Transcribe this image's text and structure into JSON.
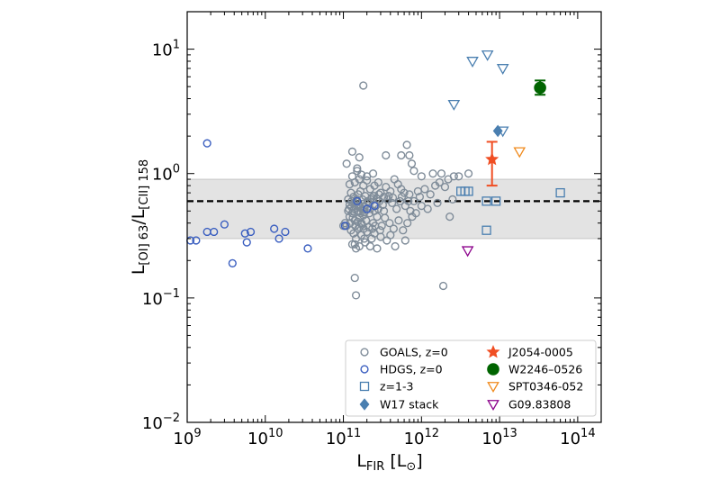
{
  "chart_data": {
    "type": "scatter",
    "x_scale": "log",
    "y_scale": "log",
    "xlim": [
      1000000000.0,
      200000000000000.0
    ],
    "ylim": [
      0.01,
      20
    ],
    "x_ticks": [
      {
        "value": 1000000000.0,
        "base": "10",
        "exp": "9"
      },
      {
        "value": 10000000000.0,
        "base": "10",
        "exp": "10"
      },
      {
        "value": 100000000000.0,
        "base": "10",
        "exp": "11"
      },
      {
        "value": 1000000000000.0,
        "base": "10",
        "exp": "12"
      },
      {
        "value": 10000000000000.0,
        "base": "10",
        "exp": "13"
      },
      {
        "value": 100000000000000.0,
        "base": "10",
        "exp": "14"
      }
    ],
    "y_ticks": [
      {
        "value": 0.01,
        "base": "10",
        "exp": "−2"
      },
      {
        "value": 0.1,
        "base": "10",
        "exp": "−1"
      },
      {
        "value": 1,
        "base": "10",
        "exp": "0"
      },
      {
        "value": 10,
        "base": "10",
        "exp": "1"
      }
    ],
    "xlabel": {
      "main": "L",
      "sub": "FIR",
      "unit": " [L",
      "unit_sub": "⊙",
      "close": "]"
    },
    "ylabel": {
      "main1": "L",
      "sub1": "[OI] 63",
      "slash": "/L",
      "sub2": "[CII] 158"
    },
    "reference_line": {
      "y": 0.6,
      "style": "dashed"
    },
    "reference_band": {
      "y0": 0.3,
      "y1": 0.9
    },
    "grid": false,
    "legend_position": "lower right",
    "series": [
      {
        "name": "GOALS, z=0",
        "marker": "circle-open",
        "color": "#7f8c99",
        "points": [
          [
            110000000000.0,
            1.2
          ],
          [
            130000000000.0,
            0.95
          ],
          [
            150000000000.0,
            1.05
          ],
          [
            170000000000.0,
            0.98
          ],
          [
            120000000000.0,
            0.82
          ],
          [
            140000000000.0,
            0.85
          ],
          [
            160000000000.0,
            0.9
          ],
          [
            180000000000.0,
            0.8
          ],
          [
            200000000000.0,
            0.88
          ],
          [
            220000000000.0,
            0.75
          ],
          [
            250000000000.0,
            0.8
          ],
          [
            280000000000.0,
            0.85
          ],
          [
            300000000000.0,
            0.7
          ],
          [
            350000000000.0,
            0.78
          ],
          [
            400000000000.0,
            0.72
          ],
          [
            450000000000.0,
            0.9
          ],
          [
            500000000000.0,
            0.82
          ],
          [
            550000000000.0,
            0.75
          ],
          [
            600000000000.0,
            0.7
          ],
          [
            700000000000.0,
            0.68
          ],
          [
            800000000000.0,
            1.05
          ],
          [
            900000000000.0,
            0.72
          ],
          [
            1100000000000.0,
            0.75
          ],
          [
            1300000000000.0,
            0.68
          ],
          [
            1500000000000.0,
            0.8
          ],
          [
            1700000000000.0,
            0.85
          ],
          [
            2000000000000.0,
            0.78
          ],
          [
            2200000000000.0,
            0.9
          ],
          [
            2600000000000.0,
            0.95
          ],
          [
            3000000000000.0,
            0.95
          ],
          [
            1800000000000.0,
            1.0
          ],
          [
            4000000000000.0,
            1.0
          ],
          [
            125000000000.0,
            0.7
          ],
          [
            135000000000.0,
            0.65
          ],
          [
            145000000000.0,
            0.6
          ],
          [
            155000000000.0,
            0.68
          ],
          [
            165000000000.0,
            0.72
          ],
          [
            175000000000.0,
            0.62
          ],
          [
            190000000000.0,
            0.66
          ],
          [
            210000000000.0,
            0.58
          ],
          [
            230000000000.0,
            0.64
          ],
          [
            260000000000.0,
            0.55
          ],
          [
            290000000000.0,
            0.6
          ],
          [
            320000000000.0,
            0.56
          ],
          [
            370000000000.0,
            0.62
          ],
          [
            420000000000.0,
            0.58
          ],
          [
            480000000000.0,
            0.52
          ],
          [
            530000000000.0,
            0.6
          ],
          [
            620000000000.0,
            0.55
          ],
          [
            720000000000.0,
            0.5
          ],
          [
            850000000000.0,
            0.48
          ],
          [
            1000000000000.0,
            0.55
          ],
          [
            1200000000000.0,
            0.52
          ],
          [
            1600000000000.0,
            0.58
          ],
          [
            115000000000.0,
            0.5
          ],
          [
            120000000000.0,
            0.45
          ],
          [
            130000000000.0,
            0.48
          ],
          [
            140000000000.0,
            0.42
          ],
          [
            150000000000.0,
            0.5
          ],
          [
            160000000000.0,
            0.44
          ],
          [
            170000000000.0,
            0.4
          ],
          [
            180000000000.0,
            0.46
          ],
          [
            195000000000.0,
            0.42
          ],
          [
            215000000000.0,
            0.48
          ],
          [
            240000000000.0,
            0.4
          ],
          [
            270000000000.0,
            0.45
          ],
          [
            310000000000.0,
            0.38
          ],
          [
            340000000000.0,
            0.44
          ],
          [
            390000000000.0,
            0.4
          ],
          [
            440000000000.0,
            0.36
          ],
          [
            510000000000.0,
            0.42
          ],
          [
            580000000000.0,
            0.35
          ],
          [
            660000000000.0,
            0.4
          ],
          [
            760000000000.0,
            0.45
          ],
          [
            110000000000.0,
            0.38
          ],
          [
            125000000000.0,
            0.35
          ],
          [
            135000000000.0,
            0.33
          ],
          [
            145000000000.0,
            0.3
          ],
          [
            155000000000.0,
            0.36
          ],
          [
            170000000000.0,
            0.32
          ],
          [
            185000000000.0,
            0.3
          ],
          [
            200000000000.0,
            0.34
          ],
          [
            230000000000.0,
            0.3
          ],
          [
            250000000000.0,
            0.33
          ],
          [
            300000000000.0,
            0.31
          ],
          [
            360000000000.0,
            0.29
          ],
          [
            400000000000.0,
            0.32
          ],
          [
            130000000000.0,
            0.27
          ],
          [
            145000000000.0,
            0.25
          ],
          [
            160000000000.0,
            0.26
          ],
          [
            190000000000.0,
            0.28
          ],
          [
            220000000000.0,
            0.26
          ],
          [
            270000000000.0,
            0.25
          ],
          [
            460000000000.0,
            0.26
          ],
          [
            620000000000.0,
            0.29
          ],
          [
            140000000000.0,
            0.27
          ],
          [
            120000000000.0,
            0.56
          ],
          [
            128000000000.0,
            0.6
          ],
          [
            138000000000.0,
            0.58
          ],
          [
            148000000000.0,
            0.62
          ],
          [
            158000000000.0,
            0.55
          ],
          [
            168000000000.0,
            0.53
          ],
          [
            178000000000.0,
            0.57
          ],
          [
            188000000000.0,
            0.54
          ],
          [
            205000000000.0,
            0.6
          ],
          [
            225000000000.0,
            0.62
          ],
          [
            245000000000.0,
            0.66
          ],
          [
            265000000000.0,
            0.63
          ],
          [
            285000000000.0,
            0.68
          ],
          [
            330000000000.0,
            0.65
          ],
          [
            380000000000.0,
            0.66
          ],
          [
            430000000000.0,
            0.64
          ],
          [
            560000000000.0,
            0.65
          ],
          [
            680000000000.0,
            0.6
          ],
          [
            115000000000.0,
            0.62
          ],
          [
            122000000000.0,
            0.4
          ],
          [
            132000000000.0,
            0.44
          ],
          [
            142000000000.0,
            0.38
          ],
          [
            152000000000.0,
            0.41
          ],
          [
            162000000000.0,
            0.37
          ],
          [
            172000000000.0,
            0.39
          ],
          [
            182000000000.0,
            0.36
          ],
          [
            212000000000.0,
            0.37
          ],
          [
            235000000000.0,
            0.36
          ],
          [
            255000000000.0,
            0.38
          ],
          [
            295000000000.0,
            0.35
          ],
          [
            118000000000.0,
            0.52
          ],
          [
            127000000000.0,
            0.54
          ],
          [
            137000000000.0,
            0.52
          ],
          [
            147000000000.0,
            0.55
          ],
          [
            157000000000.0,
            0.5
          ],
          [
            167000000000.0,
            0.48
          ],
          [
            177000000000.0,
            0.51
          ],
          [
            187000000000.0,
            0.49
          ],
          [
            220000000000.0,
            0.52
          ],
          [
            250000000000.0,
            0.5
          ],
          [
            280000000000.0,
            0.52
          ],
          [
            330000000000.0,
            0.5
          ],
          [
            180000000000.0,
            5.1
          ],
          [
            160000000000.0,
            1.35
          ],
          [
            650000000000.0,
            1.7
          ],
          [
            700000000000.0,
            1.4
          ],
          [
            550000000000.0,
            1.4
          ],
          [
            750000000000.0,
            1.2
          ],
          [
            350000000000.0,
            1.4
          ],
          [
            1400000000000.0,
            1.0
          ],
          [
            1000000000000.0,
            0.95
          ],
          [
            140000000000.0,
            0.145
          ],
          [
            145000000000.0,
            0.105
          ],
          [
            1900000000000.0,
            0.125
          ],
          [
            2500000000000.0,
            0.62
          ],
          [
            2300000000000.0,
            0.45
          ],
          [
            150000000000.0,
            1.1
          ],
          [
            200000000000.0,
            0.95
          ],
          [
            240000000000.0,
            1.0
          ],
          [
            130000000000.0,
            1.5
          ],
          [
            100000000000.0,
            0.38
          ],
          [
            105000000000.0,
            0.4
          ],
          [
            800000000000.0,
            0.6
          ],
          [
            950000000000.0,
            0.65
          ]
        ]
      },
      {
        "name": "HDGS, z=0",
        "marker": "circle-open",
        "color": "#3b5fc0",
        "points": [
          [
            1100000000.0,
            0.29
          ],
          [
            1300000000.0,
            0.29
          ],
          [
            1800000000.0,
            0.34
          ],
          [
            2200000000.0,
            0.34
          ],
          [
            1800000000.0,
            1.75
          ],
          [
            3000000000.0,
            0.39
          ],
          [
            3800000000.0,
            0.19
          ],
          [
            5500000000.0,
            0.33
          ],
          [
            5800000000.0,
            0.28
          ],
          [
            6500000000.0,
            0.34
          ],
          [
            13000000000.0,
            0.36
          ],
          [
            15000000000.0,
            0.3
          ],
          [
            18000000000.0,
            0.34
          ],
          [
            35000000000.0,
            0.25
          ],
          [
            105000000000.0,
            0.38
          ],
          [
            200000000000.0,
            0.52
          ],
          [
            150000000000.0,
            0.6
          ],
          [
            250000000000.0,
            0.55
          ]
        ]
      },
      {
        "name": "z=1-3",
        "marker": "square-open",
        "color": "#4a7fb0",
        "points": [
          [
            3200000000000.0,
            0.72
          ],
          [
            3600000000000.0,
            0.72
          ],
          [
            4000000000000.0,
            0.72
          ],
          [
            6800000000000.0,
            0.6
          ],
          [
            9000000000000.0,
            0.6
          ],
          [
            6800000000000.0,
            0.35
          ],
          [
            60000000000000.0,
            0.7
          ]
        ]
      },
      {
        "name": "W17 stack",
        "marker": "diamond",
        "color": "#4a7fb0",
        "points": [
          [
            9500000000000.0,
            2.2
          ]
        ]
      },
      {
        "name": "J2054-0005",
        "marker": "star",
        "color": "#f04e23",
        "points": [
          [
            8000000000000.0,
            1.3
          ]
        ],
        "error_low": [
          0.5
        ],
        "error_high": [
          0.5
        ]
      },
      {
        "name": "W2246–0526",
        "marker": "circle-filled",
        "color": "#006400",
        "points": [
          [
            33000000000000.0,
            4.9
          ]
        ],
        "error_low": [
          0.6
        ],
        "error_high": [
          0.7
        ]
      },
      {
        "name": "SPT0346-052",
        "marker": "triangle-down-open",
        "color": "#f08a1c",
        "points": [
          [
            18000000000000.0,
            1.5
          ]
        ]
      },
      {
        "name": "G09.83808",
        "marker": "triangle-down-open",
        "color": "#8b008b",
        "points": [
          [
            3900000000000.0,
            0.24
          ]
        ]
      },
      {
        "name": "",
        "legend": false,
        "marker": "triangle-down-open",
        "color": "#4a7fb0",
        "points": [
          [
            4500000000000.0,
            8.0
          ],
          [
            7000000000000.0,
            9.0
          ],
          [
            11000000000000.0,
            7.0
          ],
          [
            2600000000000.0,
            3.6
          ],
          [
            11000000000000.0,
            2.2
          ]
        ]
      }
    ]
  }
}
